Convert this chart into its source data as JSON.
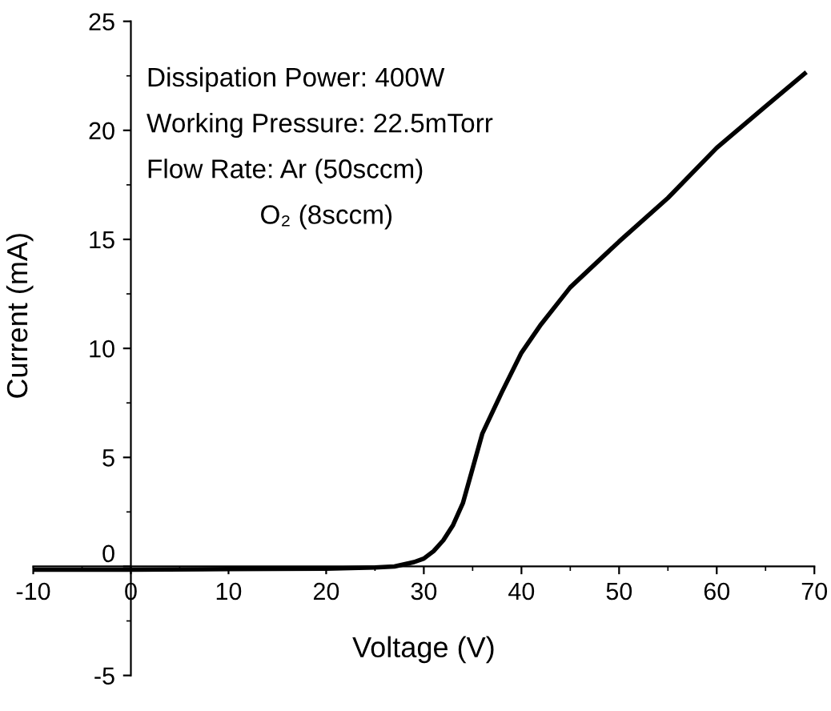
{
  "chart_data": {
    "type": "line",
    "xlabel": "Voltage (V)",
    "ylabel": "Current (mA)",
    "annotations": [
      "Dissipation Power: 400W",
      "Working Pressure: 22.5mTorr",
      "Flow Rate: Ar (50sccm)",
      "O₂ (8sccm)"
    ],
    "x": [
      -10,
      0,
      10,
      20,
      25,
      27,
      28,
      29,
      30,
      31,
      32,
      33,
      34,
      35,
      36,
      38,
      40,
      42,
      45,
      50,
      55,
      60,
      65,
      69
    ],
    "series": [
      {
        "color": "#000000",
        "values": [
          -0.15,
          -0.15,
          -0.12,
          -0.1,
          -0.05,
          0.0,
          0.1,
          0.2,
          0.36,
          0.7,
          1.2,
          1.9,
          2.9,
          4.5,
          6.1,
          8.0,
          9.8,
          11.1,
          12.8,
          14.9,
          16.9,
          19.2,
          21.1,
          22.6
        ]
      }
    ],
    "xlim": [
      -10,
      70
    ],
    "xticks": [
      -10,
      0,
      10,
      20,
      30,
      40,
      50,
      60,
      70
    ],
    "ylim": [
      -5,
      25
    ],
    "yticks": [
      -5,
      0,
      5,
      10,
      15,
      20,
      25
    ],
    "grid": false,
    "legend": false,
    "marker": "none",
    "line_style": "solid"
  }
}
